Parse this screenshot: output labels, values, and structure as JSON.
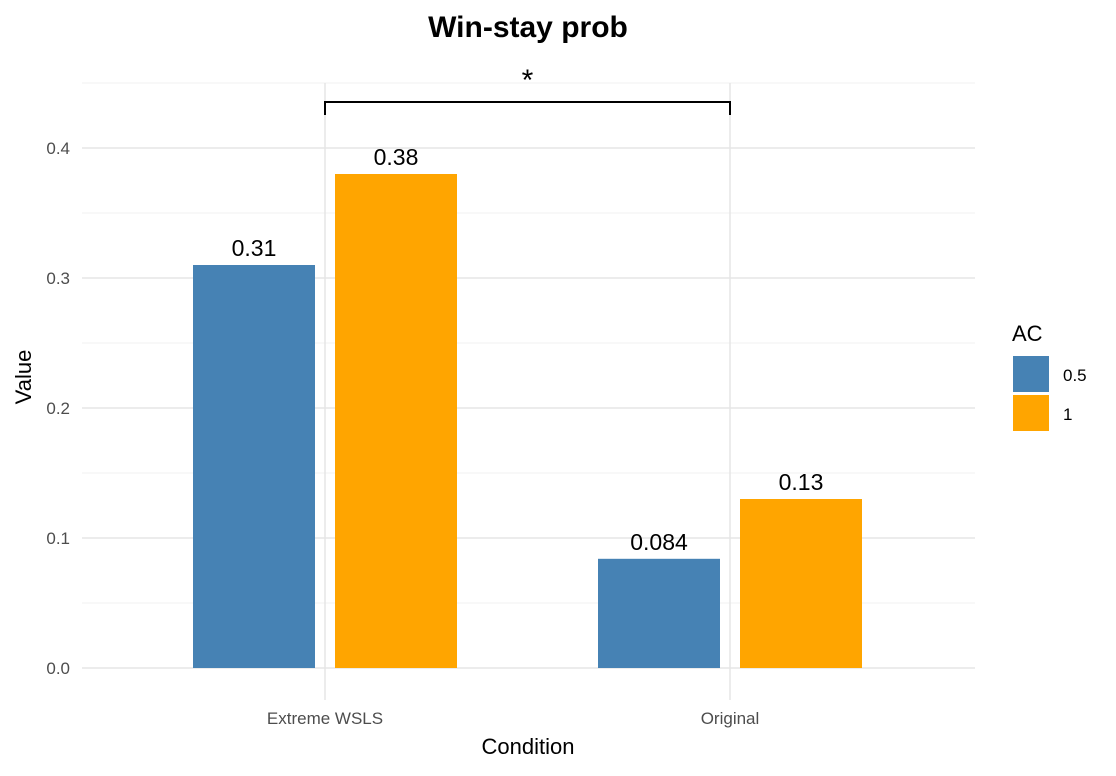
{
  "chart_data": {
    "type": "bar",
    "title": "Win-stay prob",
    "xlabel": "Condition",
    "ylabel": "Value",
    "categories": [
      "Extreme WSLS",
      "Original"
    ],
    "series": [
      {
        "name": "0.5",
        "color": "#4682B4",
        "values": [
          0.31,
          0.084
        ],
        "labels": [
          "0.31",
          "0.084"
        ]
      },
      {
        "name": "1",
        "color": "#FFA500",
        "values": [
          0.38,
          0.13
        ],
        "labels": [
          "0.38",
          "0.13"
        ]
      }
    ],
    "ylim": [
      0,
      0.45
    ],
    "yticks": [
      0.0,
      0.1,
      0.2,
      0.3,
      0.4
    ],
    "ytick_labels": [
      "0.0",
      "0.1",
      "0.2",
      "0.3",
      "0.4"
    ],
    "grid": true,
    "legend": {
      "title": "AC",
      "position": "right"
    },
    "annotation": {
      "text": "*",
      "between": [
        "Extreme WSLS",
        "Original"
      ]
    }
  }
}
